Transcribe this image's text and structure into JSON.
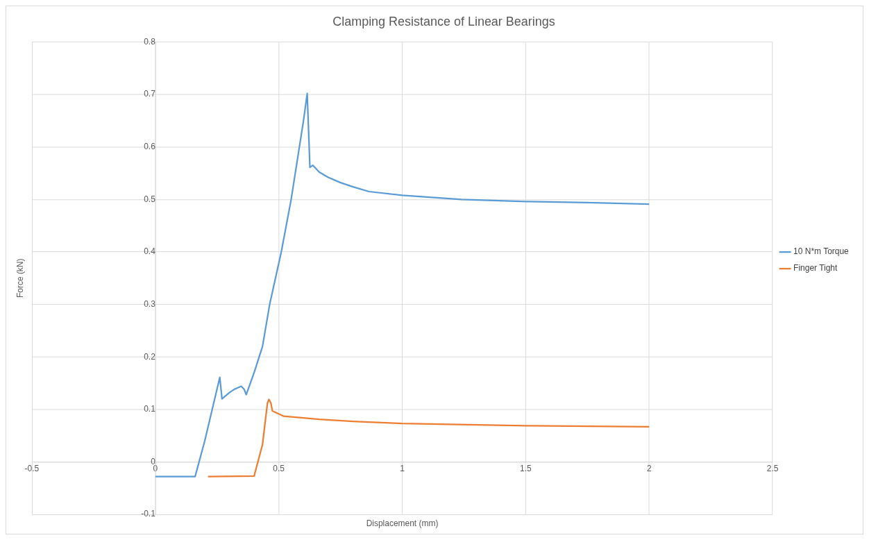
{
  "chart_data": {
    "type": "line",
    "title": "Clamping Resistance of Linear Bearings",
    "xlabel": "Displacement (mm)",
    "ylabel": "Force (kN)",
    "xlim": [
      -0.5,
      2.5
    ],
    "xticks": [
      -0.5,
      0,
      0.5,
      1,
      1.5,
      2,
      2.5
    ],
    "ylim": [
      -0.1,
      0.8
    ],
    "yticks": [
      -0.1,
      0,
      0.1,
      0.2,
      0.3,
      0.4,
      0.5,
      0.6,
      0.7,
      0.8
    ],
    "grid": true,
    "legend": "right",
    "marker": "none",
    "line_style": "solid",
    "series": [
      {
        "name": "10 N*m Torque",
        "color": "#5b9bd5",
        "x": [
          0,
          0.161,
          0.2,
          0.261,
          0.27,
          0.3,
          0.319,
          0.348,
          0.36,
          0.368,
          0.4,
          0.434,
          0.463,
          0.51,
          0.55,
          0.6,
          0.615,
          0.626,
          0.638,
          0.664,
          0.7,
          0.75,
          0.8,
          0.865,
          1.0,
          1.24,
          1.5,
          1.75,
          2.0
        ],
        "values": [
          -0.028,
          -0.028,
          0.04,
          0.161,
          0.12,
          0.132,
          0.138,
          0.144,
          0.138,
          0.128,
          0.17,
          0.22,
          0.3,
          0.4,
          0.5,
          0.65,
          0.702,
          0.561,
          0.565,
          0.552,
          0.542,
          0.532,
          0.524,
          0.515,
          0.508,
          0.5,
          0.496,
          0.494,
          0.491
        ]
      },
      {
        "name": "Finger Tight",
        "color": "#ed7d31",
        "x": [
          0.213,
          0.4,
          0.434,
          0.454,
          0.46,
          0.468,
          0.474,
          0.52,
          0.664,
          0.8,
          1.0,
          1.5,
          2.0
        ],
        "values": [
          -0.028,
          -0.027,
          0.033,
          0.112,
          0.119,
          0.112,
          0.097,
          0.087,
          0.081,
          0.077,
          0.073,
          0.069,
          0.067
        ]
      }
    ]
  }
}
